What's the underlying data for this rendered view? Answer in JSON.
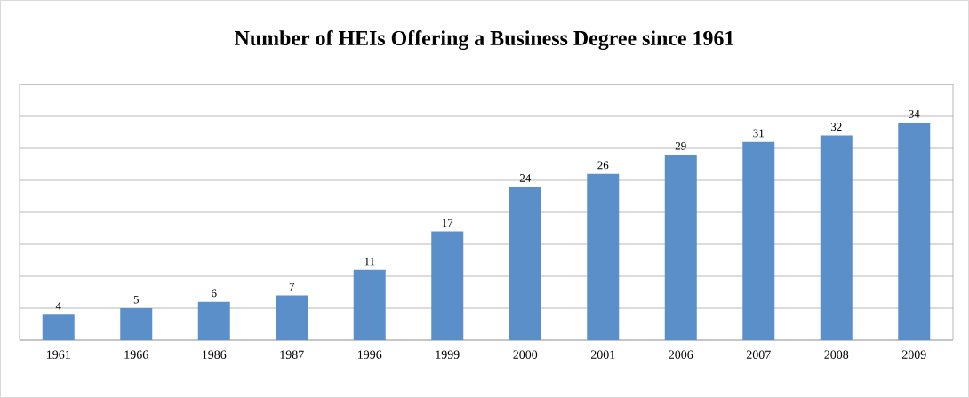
{
  "chart_data": {
    "type": "bar",
    "title": "Number of HEIs Offering a Business Degree since 1961",
    "categories": [
      "1961",
      "1966",
      "1986",
      "1987",
      "1996",
      "1999",
      "2000",
      "2001",
      "2006",
      "2007",
      "2008",
      "2009"
    ],
    "values": [
      4,
      5,
      6,
      7,
      11,
      17,
      24,
      26,
      29,
      31,
      32,
      34
    ],
    "color": "#5b8fc9",
    "ylim": [
      0,
      40
    ],
    "yticks": [
      {
        "value": 0,
        "label": null
      },
      {
        "value": 5,
        "label": null
      },
      {
        "value": 10,
        "label": null
      },
      {
        "value": 15,
        "label": null
      },
      {
        "value": 20,
        "label": null
      },
      {
        "value": 25,
        "label": null
      },
      {
        "value": 30,
        "label": null
      },
      {
        "value": 35,
        "label": null
      },
      {
        "value": 40,
        "label": null
      }
    ],
    "tick_labels": "x",
    "grid": "y",
    "data_labels": true
  }
}
